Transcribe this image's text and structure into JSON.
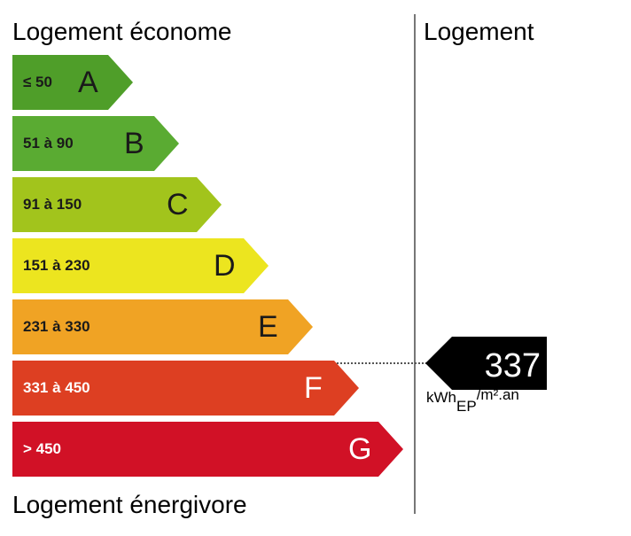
{
  "header": {
    "left_title": "Logement économe",
    "right_title": "Logement"
  },
  "footer": {
    "left_title": "Logement énergivore"
  },
  "bands": [
    {
      "range": "≤ 50",
      "letter": "A",
      "color": "#4f9e29"
    },
    {
      "range": "51 à 90",
      "letter": "B",
      "color": "#5aab32"
    },
    {
      "range": "91 à 150",
      "letter": "C",
      "color": "#a2c41c"
    },
    {
      "range": "151 à 230",
      "letter": "D",
      "color": "#ece51f"
    },
    {
      "range": "231 à 330",
      "letter": "E",
      "color": "#f0a324"
    },
    {
      "range": "331 à 450",
      "letter": "F",
      "color": "#dd3f22"
    },
    {
      "range": "> 450",
      "letter": "G",
      "color": "#d11126"
    }
  ],
  "indicator": {
    "value": "337",
    "unit_main": "kWh",
    "unit_sub": "EP",
    "unit_rest": "/m².an",
    "badge_color": "#000000"
  }
}
